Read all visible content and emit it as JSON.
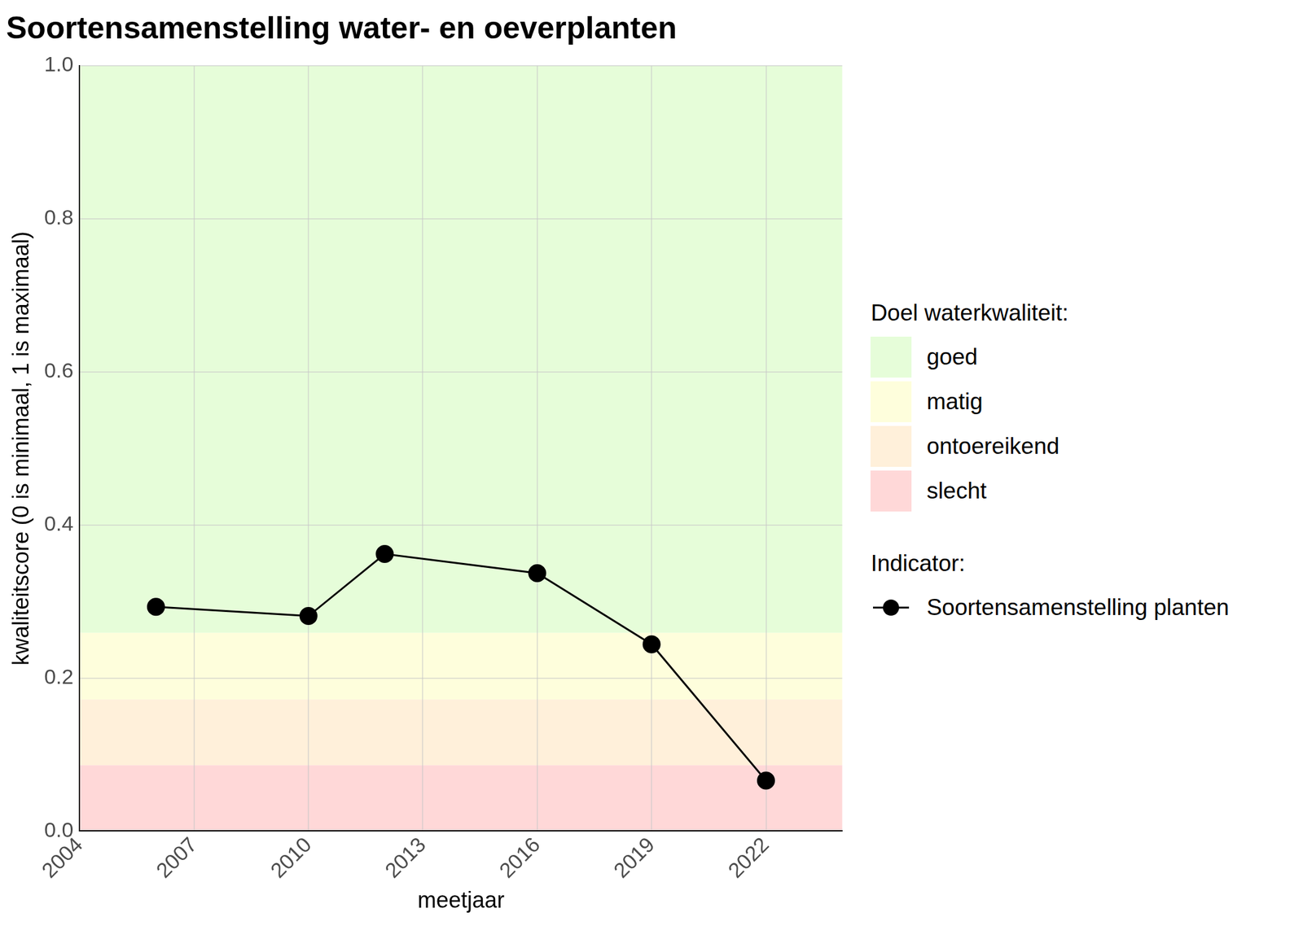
{
  "chart_data": {
    "type": "line",
    "title": "Soortensamenstelling water- en oeverplanten",
    "x_label": "meetjaar",
    "y_label": "kwaliteitscore (0 is minimaal, 1 is maximaal)",
    "x": [
      2006,
      2010,
      2012,
      2016,
      2019,
      2022
    ],
    "series": [
      {
        "name": "Soortensamenstelling planten",
        "color": "#000000",
        "marker": "circle",
        "line_style": "solid",
        "values": [
          0.293,
          0.281,
          0.362,
          0.337,
          0.244,
          0.066
        ]
      }
    ],
    "xlim": [
      2004,
      2024
    ],
    "xticks": [
      2004,
      2007,
      2010,
      2013,
      2016,
      2019,
      2022
    ],
    "ylim": [
      0,
      1
    ],
    "yticks": [
      {
        "value": 0,
        "label": "0.0"
      },
      0.2,
      0.4,
      0.6,
      0.8,
      {
        "value": 1,
        "label": "1.0"
      }
    ],
    "grid": true,
    "bands_title": "Doel waterkwaliteit:",
    "bands": [
      {
        "name": "goed",
        "color": "#e6fdd9",
        "from": 0.259,
        "to": 1.0
      },
      {
        "name": "matig",
        "color": "#fefedc",
        "from": 0.172,
        "to": 0.259
      },
      {
        "name": "ontoereikend",
        "color": "#fff0da",
        "from": 0.086,
        "to": 0.172
      },
      {
        "name": "slecht",
        "color": "#ffd8d8",
        "from": 0,
        "to": 0.086
      }
    ],
    "legend_title": "Indicator:",
    "legend": "right"
  }
}
